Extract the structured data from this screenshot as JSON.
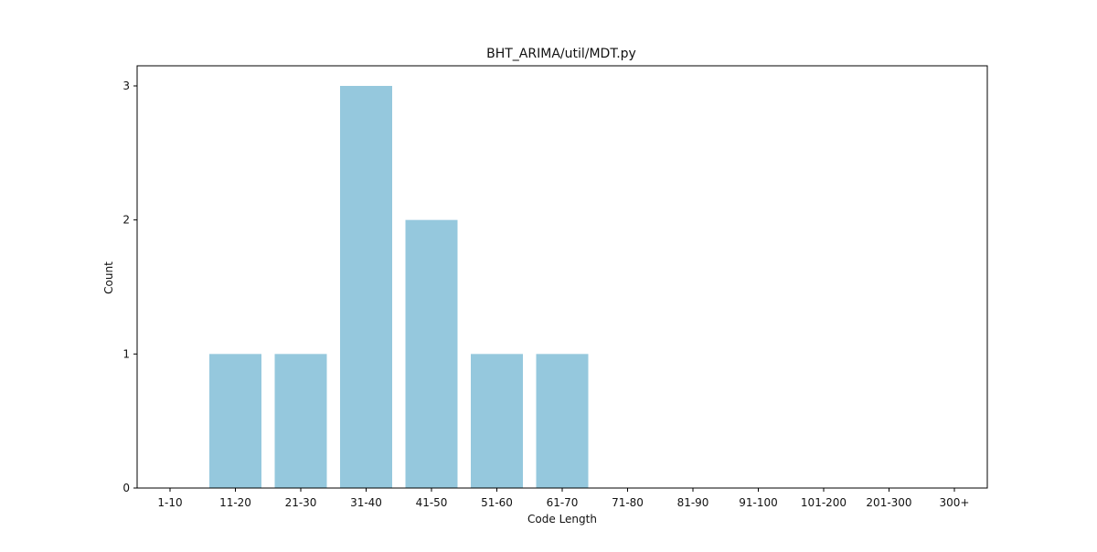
{
  "chart_data": {
    "type": "bar",
    "title": "BHT_ARIMA/util/MDT.py",
    "xlabel": "Code Length",
    "ylabel": "Count",
    "categories": [
      "1-10",
      "11-20",
      "21-30",
      "31-40",
      "41-50",
      "51-60",
      "61-70",
      "71-80",
      "81-90",
      "91-100",
      "101-200",
      "201-300",
      "300+"
    ],
    "values": [
      0,
      1,
      1,
      3,
      2,
      1,
      1,
      0,
      0,
      0,
      0,
      0,
      0
    ],
    "yticks": [
      0,
      1,
      2,
      3
    ],
    "ylim": [
      0,
      3.15
    ],
    "grid": false,
    "bar_color": "#95c8dd"
  }
}
